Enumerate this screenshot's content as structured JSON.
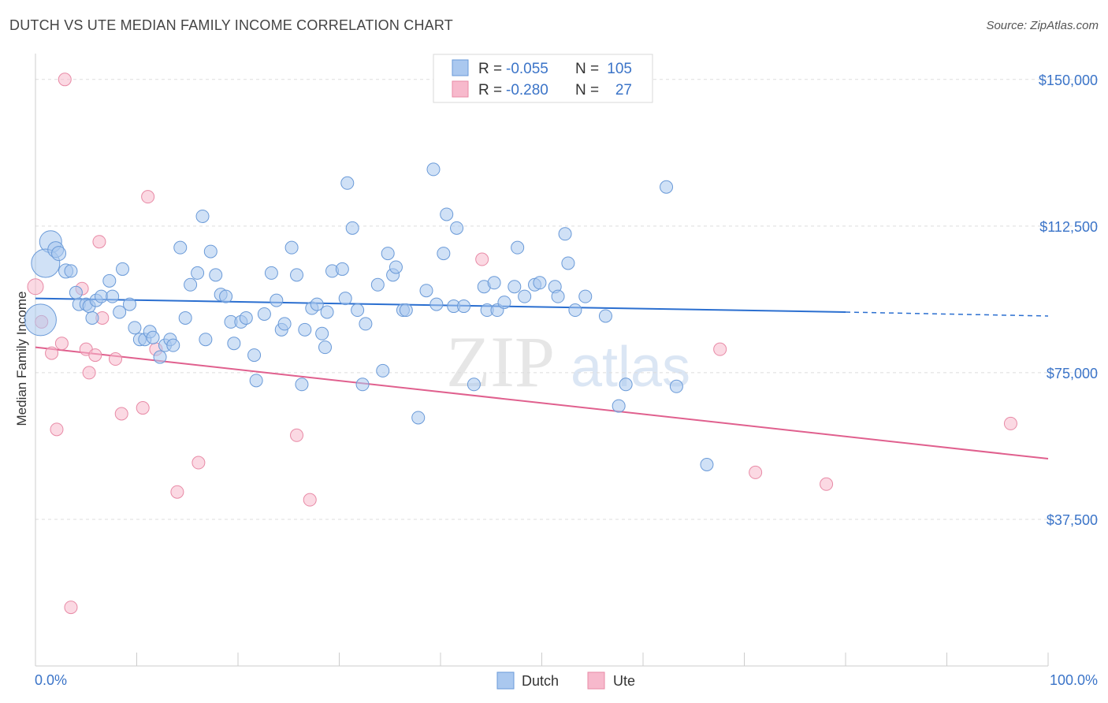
{
  "title": "DUTCH VS UTE MEDIAN FAMILY INCOME CORRELATION CHART",
  "source": "Source: ZipAtlas.com",
  "colors": {
    "dutch_fill": "#aac8ef",
    "dutch_stroke": "#6a9ad8",
    "dutch_line": "#2b6fd0",
    "ute_fill": "#f7b9cc",
    "ute_stroke": "#e88aa6",
    "ute_line": "#e0608e",
    "axis_text": "#3b74c8",
    "grid": "#dddddd"
  },
  "legend": {
    "rows": [
      {
        "series": "Dutch",
        "r_label": "R =",
        "r_value": "-0.055",
        "n_label": "N =",
        "n_value": "105"
      },
      {
        "series": "Ute",
        "r_label": "R =",
        "r_value": "-0.280",
        "n_label": "N =",
        "n_value": "27"
      }
    ]
  },
  "bottom_legend": [
    "Dutch",
    "Ute"
  ],
  "watermark": {
    "zip": "ZIP",
    "atlas": "atlas"
  },
  "chart_data": {
    "type": "scatter",
    "title": "DUTCH VS UTE MEDIAN FAMILY INCOME CORRELATION CHART",
    "xlabel": "",
    "ylabel": "Median Family Income",
    "xlim": [
      0,
      100
    ],
    "ylim": [
      0,
      155000
    ],
    "x_tick_labels": [
      "0.0%",
      "100.0%"
    ],
    "y_ticks": [
      37500,
      75000,
      112500,
      150000
    ],
    "y_tick_labels": [
      "$37,500",
      "$75,000",
      "$112,500",
      "$150,000"
    ],
    "series": [
      {
        "name": "Dutch",
        "trend": {
          "x0": 0,
          "y0": 94000,
          "x1": 80,
          "y1": 90500,
          "dashed_to_x": 100,
          "dashed_to_y": 89500
        },
        "points": [
          [
            1.5,
            108500,
            14
          ],
          [
            1,
            103000,
            18
          ],
          [
            0.5,
            88500,
            20
          ],
          [
            2,
            106500,
            10
          ],
          [
            2.3,
            105500,
            9
          ],
          [
            3,
            101000,
            9
          ],
          [
            3.5,
            101000,
            8
          ],
          [
            4,
            95500,
            8
          ],
          [
            4.3,
            92500,
            8
          ],
          [
            5,
            92500,
            8
          ],
          [
            5.3,
            92000,
            8
          ],
          [
            5.6,
            89000,
            8
          ],
          [
            6,
            93500,
            8
          ],
          [
            6.5,
            94500,
            8
          ],
          [
            7.3,
            98500,
            8
          ],
          [
            7.6,
            94500,
            8
          ],
          [
            8.3,
            90500,
            8
          ],
          [
            8.6,
            101500,
            8
          ],
          [
            9.3,
            92500,
            8
          ],
          [
            9.8,
            86500,
            8
          ],
          [
            10.3,
            83500,
            8
          ],
          [
            10.8,
            83500,
            8
          ],
          [
            11.3,
            85500,
            8
          ],
          [
            11.6,
            84000,
            8
          ],
          [
            12.3,
            79000,
            8
          ],
          [
            12.8,
            82000,
            8
          ],
          [
            13.3,
            83500,
            8
          ],
          [
            13.6,
            82000,
            8
          ],
          [
            14.3,
            107000,
            8
          ],
          [
            14.8,
            89000,
            8
          ],
          [
            15.3,
            97500,
            8
          ],
          [
            16,
            100500,
            8
          ],
          [
            16.5,
            115000,
            8
          ],
          [
            16.8,
            83500,
            8
          ],
          [
            17.3,
            106000,
            8
          ],
          [
            17.8,
            100000,
            8
          ],
          [
            18.3,
            95000,
            8
          ],
          [
            18.8,
            94500,
            8
          ],
          [
            19.3,
            88000,
            8
          ],
          [
            19.6,
            82500,
            8
          ],
          [
            20.3,
            88000,
            8
          ],
          [
            20.8,
            89000,
            8
          ],
          [
            21.6,
            79500,
            8
          ],
          [
            21.8,
            73000,
            8
          ],
          [
            22.6,
            90000,
            8
          ],
          [
            23.3,
            100500,
            8
          ],
          [
            23.8,
            93500,
            8
          ],
          [
            24.3,
            86000,
            8
          ],
          [
            24.6,
            87500,
            8
          ],
          [
            25.3,
            107000,
            8
          ],
          [
            25.8,
            100000,
            8
          ],
          [
            26.3,
            72000,
            8
          ],
          [
            26.6,
            86000,
            8
          ],
          [
            27.3,
            91500,
            8
          ],
          [
            27.8,
            92500,
            8
          ],
          [
            28.3,
            85000,
            8
          ],
          [
            28.6,
            81500,
            8
          ],
          [
            28.8,
            90500,
            8
          ],
          [
            29.3,
            101000,
            8
          ],
          [
            30.3,
            101500,
            8
          ],
          [
            30.6,
            94000,
            8
          ],
          [
            30.8,
            123500,
            8
          ],
          [
            31.3,
            112000,
            8
          ],
          [
            31.8,
            91000,
            8
          ],
          [
            32.3,
            72000,
            8
          ],
          [
            32.6,
            87500,
            8
          ],
          [
            33.8,
            97500,
            8
          ],
          [
            34.3,
            75500,
            8
          ],
          [
            34.8,
            105500,
            8
          ],
          [
            35.3,
            100000,
            8
          ],
          [
            35.6,
            102000,
            8
          ],
          [
            36.3,
            91000,
            8
          ],
          [
            36.6,
            91000,
            8
          ],
          [
            37.8,
            63500,
            8
          ],
          [
            38.6,
            96000,
            8
          ],
          [
            39.3,
            127000,
            8
          ],
          [
            39.6,
            92500,
            8
          ],
          [
            40.3,
            105500,
            8
          ],
          [
            40.6,
            115500,
            8
          ],
          [
            41.3,
            92000,
            8
          ],
          [
            41.6,
            112000,
            8
          ],
          [
            42.3,
            92000,
            8
          ],
          [
            43.3,
            72000,
            8
          ],
          [
            44.3,
            97000,
            8
          ],
          [
            44.6,
            91000,
            8
          ],
          [
            45.3,
            98000,
            8
          ],
          [
            45.6,
            91000,
            8
          ],
          [
            46.3,
            93000,
            8
          ],
          [
            47.3,
            97000,
            8
          ],
          [
            47.6,
            107000,
            8
          ],
          [
            48.3,
            94500,
            8
          ],
          [
            49.3,
            97500,
            8
          ],
          [
            49.8,
            98000,
            8
          ],
          [
            51.3,
            97000,
            8
          ],
          [
            51.6,
            94500,
            8
          ],
          [
            52.3,
            110500,
            8
          ],
          [
            52.6,
            103000,
            8
          ],
          [
            53.3,
            91000,
            8
          ],
          [
            54.3,
            94500,
            8
          ],
          [
            56.3,
            89500,
            8
          ],
          [
            58.3,
            72000,
            8
          ],
          [
            57.6,
            66500,
            8
          ],
          [
            62.3,
            122500,
            8
          ],
          [
            63.3,
            71500,
            8
          ],
          [
            66.3,
            51500,
            8
          ]
        ]
      },
      {
        "name": "Ute",
        "trend": {
          "x0": 0,
          "y0": 81500,
          "x1": 100,
          "y1": 53000
        },
        "points": [
          [
            0,
            97000,
            10
          ],
          [
            0.6,
            88000,
            8
          ],
          [
            1.6,
            80000,
            8
          ],
          [
            2.1,
            60500,
            8
          ],
          [
            2.6,
            82500,
            8
          ],
          [
            2.9,
            150000,
            8
          ],
          [
            3.5,
            15000,
            8
          ],
          [
            4.6,
            96500,
            8
          ],
          [
            5,
            81000,
            8
          ],
          [
            5.3,
            75000,
            8
          ],
          [
            5.9,
            79500,
            8
          ],
          [
            6.3,
            108500,
            8
          ],
          [
            6.6,
            89000,
            8
          ],
          [
            7.9,
            78500,
            8
          ],
          [
            8.5,
            64500,
            8
          ],
          [
            10.6,
            66000,
            8
          ],
          [
            11.1,
            120000,
            8
          ],
          [
            11.9,
            81000,
            8
          ],
          [
            14,
            44500,
            8
          ],
          [
            16.1,
            52000,
            8
          ],
          [
            25.8,
            59000,
            8
          ],
          [
            27.1,
            42500,
            8
          ],
          [
            44.1,
            104000,
            8
          ],
          [
            67.6,
            81000,
            8
          ],
          [
            71.1,
            49500,
            8
          ],
          [
            78.1,
            46500,
            8
          ],
          [
            96.3,
            62000,
            8
          ]
        ]
      }
    ]
  }
}
